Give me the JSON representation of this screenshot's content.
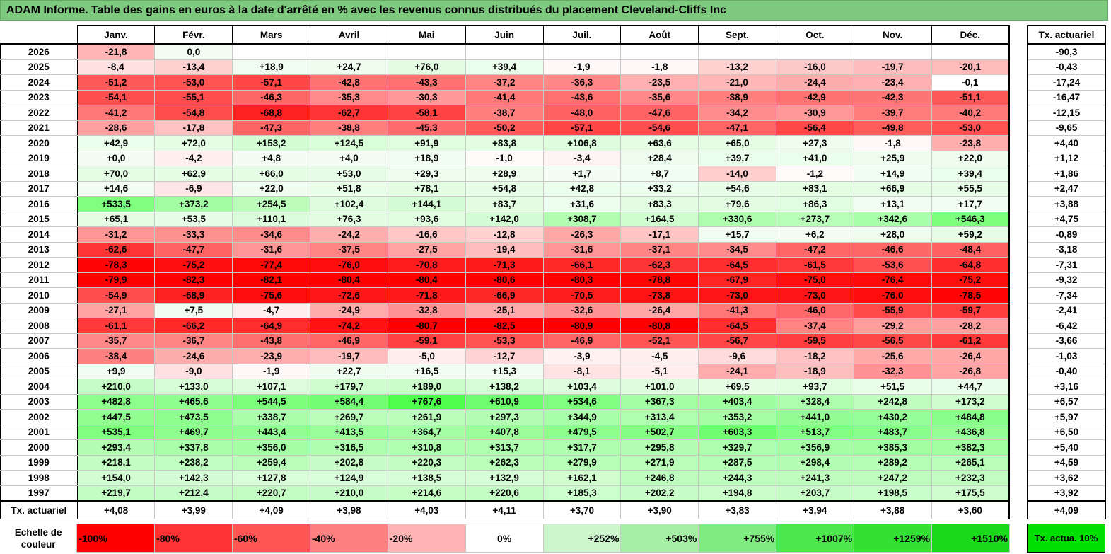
{
  "title": "ADAM Informe. Table des gains en euros à la date d'arrêté en % avec les revenus connus distribués du placement Cleveland-Cliffs Inc",
  "months": [
    "Janv.",
    "Févr.",
    "Mars",
    "Avril",
    "Mai",
    "Juin",
    "Juil.",
    "Août",
    "Sept.",
    "Oct.",
    "Nov.",
    "Déc."
  ],
  "side_header": "Tx. actuariel",
  "rows": [
    {
      "year": "2026",
      "values": [
        "-21,8",
        "0,0",
        "",
        "",
        "",
        "",
        "",
        "",
        "",
        "",
        "",
        ""
      ],
      "rate": "-90,3"
    },
    {
      "year": "2025",
      "values": [
        "-8,4",
        "-13,4",
        "+18,9",
        "+24,7",
        "+76,0",
        "+39,4",
        "-1,9",
        "-1,8",
        "-13,2",
        "-16,0",
        "-19,7",
        "-20,1"
      ],
      "rate": "-0,43"
    },
    {
      "year": "2024",
      "values": [
        "-51,2",
        "-53,0",
        "-57,1",
        "-42,8",
        "-43,3",
        "-37,2",
        "-36,3",
        "-23,5",
        "-21,0",
        "-24,4",
        "-23,4",
        "-0,1"
      ],
      "rate": "-17,24"
    },
    {
      "year": "2023",
      "values": [
        "-54,1",
        "-55,1",
        "-46,3",
        "-35,3",
        "-30,3",
        "-41,4",
        "-43,6",
        "-35,6",
        "-38,9",
        "-42,9",
        "-42,3",
        "-51,1"
      ],
      "rate": "-16,47"
    },
    {
      "year": "2022",
      "values": [
        "-41,2",
        "-54,8",
        "-68,8",
        "-62,7",
        "-58,1",
        "-38,7",
        "-48,0",
        "-47,6",
        "-34,2",
        "-30,9",
        "-39,7",
        "-40,2"
      ],
      "rate": "-12,15"
    },
    {
      "year": "2021",
      "values": [
        "-28,6",
        "-17,8",
        "-47,3",
        "-38,8",
        "-45,3",
        "-50,2",
        "-57,1",
        "-54,6",
        "-47,1",
        "-56,4",
        "-49,8",
        "-53,0"
      ],
      "rate": "-9,65"
    },
    {
      "year": "2020",
      "values": [
        "+42,9",
        "+72,0",
        "+153,2",
        "+124,5",
        "+91,9",
        "+83,8",
        "+106,8",
        "+63,6",
        "+65,0",
        "+27,3",
        "-1,8",
        "-23,8"
      ],
      "rate": "+4,40"
    },
    {
      "year": "2019",
      "values": [
        "+0,0",
        "-4,2",
        "+4,8",
        "+4,0",
        "+18,9",
        "-1,0",
        "-3,4",
        "+28,4",
        "+39,7",
        "+41,0",
        "+25,9",
        "+22,0"
      ],
      "rate": "+1,12"
    },
    {
      "year": "2018",
      "values": [
        "+70,0",
        "+62,9",
        "+66,0",
        "+53,0",
        "+29,3",
        "+28,9",
        "+1,7",
        "+8,7",
        "-14,0",
        "-1,2",
        "+14,9",
        "+39,4"
      ],
      "rate": "+1,86"
    },
    {
      "year": "2017",
      "values": [
        "+14,6",
        "-6,9",
        "+22,0",
        "+51,8",
        "+78,1",
        "+54,8",
        "+42,8",
        "+33,2",
        "+54,6",
        "+83,1",
        "+66,9",
        "+55,5"
      ],
      "rate": "+2,47"
    },
    {
      "year": "2016",
      "values": [
        "+533,5",
        "+373,2",
        "+254,5",
        "+102,4",
        "+144,1",
        "+83,7",
        "+31,6",
        "+83,3",
        "+79,6",
        "+86,3",
        "+13,1",
        "+17,7"
      ],
      "rate": "+3,88"
    },
    {
      "year": "2015",
      "values": [
        "+65,1",
        "+53,5",
        "+110,1",
        "+76,3",
        "+93,6",
        "+142,0",
        "+308,7",
        "+164,5",
        "+330,6",
        "+273,7",
        "+342,6",
        "+546,3"
      ],
      "rate": "+4,75"
    },
    {
      "year": "2014",
      "values": [
        "-31,2",
        "-33,3",
        "-34,6",
        "-24,2",
        "-16,6",
        "-12,8",
        "-26,3",
        "-17,1",
        "+15,7",
        "+6,2",
        "+28,0",
        "+59,2"
      ],
      "rate": "-0,89"
    },
    {
      "year": "2013",
      "values": [
        "-62,6",
        "-47,7",
        "-31,6",
        "-37,5",
        "-27,5",
        "-19,4",
        "-31,6",
        "-37,1",
        "-34,5",
        "-47,2",
        "-46,6",
        "-48,4"
      ],
      "rate": "-3,18"
    },
    {
      "year": "2012",
      "values": [
        "-78,3",
        "-75,2",
        "-77,4",
        "-76,0",
        "-70,8",
        "-71,3",
        "-66,1",
        "-62,3",
        "-64,5",
        "-61,5",
        "-53,6",
        "-64,8"
      ],
      "rate": "-7,31"
    },
    {
      "year": "2011",
      "values": [
        "-79,9",
        "-82,3",
        "-82,1",
        "-80,4",
        "-80,4",
        "-80,6",
        "-80,3",
        "-78,8",
        "-67,9",
        "-75,0",
        "-76,4",
        "-75,2"
      ],
      "rate": "-9,32"
    },
    {
      "year": "2010",
      "values": [
        "-54,9",
        "-68,9",
        "-75,6",
        "-72,6",
        "-71,8",
        "-66,9",
        "-70,5",
        "-73,8",
        "-73,0",
        "-73,0",
        "-76,0",
        "-78,5"
      ],
      "rate": "-7,34"
    },
    {
      "year": "2009",
      "values": [
        "-27,1",
        "+7,5",
        "-4,7",
        "-24,9",
        "-32,8",
        "-25,1",
        "-32,6",
        "-26,4",
        "-41,3",
        "-46,0",
        "-55,9",
        "-59,7"
      ],
      "rate": "-2,41"
    },
    {
      "year": "2008",
      "values": [
        "-61,1",
        "-66,2",
        "-64,9",
        "-74,2",
        "-80,7",
        "-82,5",
        "-80,9",
        "-80,8",
        "-64,5",
        "-37,4",
        "-29,2",
        "-28,2"
      ],
      "rate": "-6,42"
    },
    {
      "year": "2007",
      "values": [
        "-35,7",
        "-36,7",
        "-43,8",
        "-46,9",
        "-59,1",
        "-53,3",
        "-46,9",
        "-52,1",
        "-56,7",
        "-59,5",
        "-56,5",
        "-61,2"
      ],
      "rate": "-3,66"
    },
    {
      "year": "2006",
      "values": [
        "-38,4",
        "-24,6",
        "-23,9",
        "-19,7",
        "-5,0",
        "-12,7",
        "-3,9",
        "-4,5",
        "-9,6",
        "-18,2",
        "-25,6",
        "-26,4"
      ],
      "rate": "-1,03"
    },
    {
      "year": "2005",
      "values": [
        "+9,9",
        "-9,0",
        "-1,9",
        "+22,7",
        "+16,5",
        "+15,3",
        "-8,1",
        "-5,1",
        "-24,1",
        "-18,9",
        "-32,3",
        "-26,8"
      ],
      "rate": "-0,40"
    },
    {
      "year": "2004",
      "values": [
        "+210,0",
        "+133,0",
        "+107,1",
        "+179,7",
        "+189,0",
        "+138,2",
        "+103,4",
        "+101,0",
        "+69,5",
        "+93,7",
        "+51,5",
        "+44,7"
      ],
      "rate": "+3,16"
    },
    {
      "year": "2003",
      "values": [
        "+482,8",
        "+465,6",
        "+544,5",
        "+584,4",
        "+767,6",
        "+610,9",
        "+534,6",
        "+367,3",
        "+403,4",
        "+328,4",
        "+242,8",
        "+173,2"
      ],
      "rate": "+6,57"
    },
    {
      "year": "2002",
      "values": [
        "+447,5",
        "+473,5",
        "+338,7",
        "+269,7",
        "+261,9",
        "+297,3",
        "+344,9",
        "+313,4",
        "+353,2",
        "+441,0",
        "+430,2",
        "+484,8"
      ],
      "rate": "+5,97"
    },
    {
      "year": "2001",
      "values": [
        "+535,1",
        "+469,7",
        "+443,4",
        "+413,5",
        "+364,7",
        "+407,8",
        "+479,5",
        "+502,7",
        "+603,3",
        "+513,7",
        "+483,7",
        "+436,8"
      ],
      "rate": "+6,50"
    },
    {
      "year": "2000",
      "values": [
        "+293,4",
        "+337,8",
        "+356,0",
        "+316,5",
        "+310,8",
        "+313,7",
        "+317,7",
        "+295,8",
        "+329,7",
        "+356,9",
        "+385,3",
        "+382,3"
      ],
      "rate": "+5,40"
    },
    {
      "year": "1999",
      "values": [
        "+218,1",
        "+238,2",
        "+259,4",
        "+202,8",
        "+220,3",
        "+262,3",
        "+279,9",
        "+271,9",
        "+287,5",
        "+298,4",
        "+289,2",
        "+265,1"
      ],
      "rate": "+4,59"
    },
    {
      "year": "1998",
      "values": [
        "+154,0",
        "+142,3",
        "+127,8",
        "+124,9",
        "+138,5",
        "+132,9",
        "+162,1",
        "+246,8",
        "+244,3",
        "+241,3",
        "+247,2",
        "+232,3"
      ],
      "rate": "+3,62"
    },
    {
      "year": "1997",
      "values": [
        "+219,7",
        "+212,4",
        "+220,7",
        "+210,0",
        "+214,6",
        "+220,6",
        "+185,3",
        "+202,2",
        "+194,8",
        "+203,7",
        "+198,5",
        "+175,5"
      ],
      "rate": "+3,92"
    }
  ],
  "total_row": {
    "label": "Tx. actuariel",
    "values": [
      "+4,08",
      "+3,99",
      "+4,09",
      "+3,98",
      "+4,03",
      "+4,11",
      "+3,70",
      "+3,90",
      "+3,83",
      "+3,94",
      "+3,88",
      "+3,60"
    ],
    "rate": "+4,09"
  },
  "legend": {
    "label": "Echelle de couleur",
    "items": [
      {
        "text": "-100%",
        "color": "#ff0000"
      },
      {
        "text": "-80%",
        "color": "#ff3333"
      },
      {
        "text": "-60%",
        "color": "#ff5555"
      },
      {
        "text": "-40%",
        "color": "#ff8080"
      },
      {
        "text": "-20%",
        "color": "#ffb3b3"
      },
      {
        "text": "0%",
        "color": "#ffffff"
      },
      {
        "text": "+252%",
        "color": "#ccf5cc"
      },
      {
        "text": "+503%",
        "color": "#a6f0a6"
      },
      {
        "text": "+755%",
        "color": "#80eb80"
      },
      {
        "text": "+1007%",
        "color": "#4de64d"
      },
      {
        "text": "+1259%",
        "color": "#33e033"
      },
      {
        "text": "+1510%",
        "color": "#1ad91a"
      }
    ],
    "side_text": "Tx. actua. 10%",
    "side_color": "#00e000"
  }
}
